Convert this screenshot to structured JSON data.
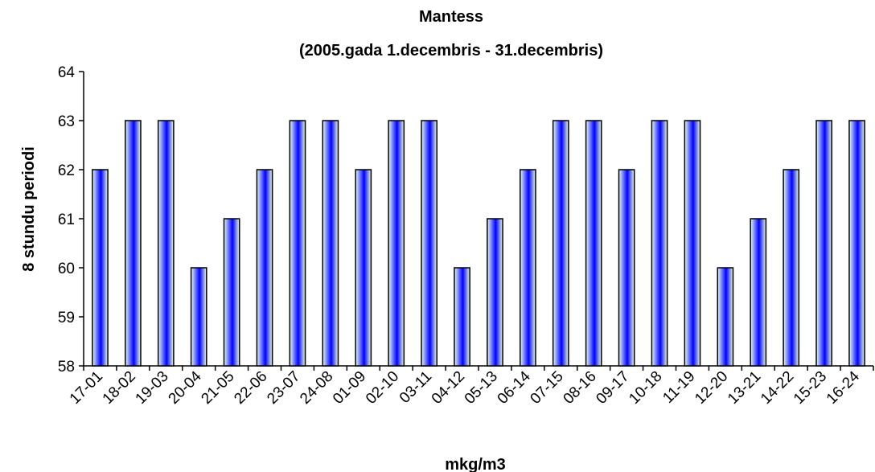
{
  "chart_data": {
    "type": "bar",
    "title": "Mantess",
    "subtitle": "(2005.gada 1.decembris - 31.decembris)",
    "xlabel": "mkg/m3",
    "ylabel": "8 stundu periodi",
    "ylim": [
      58,
      64
    ],
    "yticks": [
      58,
      59,
      60,
      61,
      62,
      63,
      64
    ],
    "grid": false,
    "legend": "none",
    "bar_gradient": [
      "#0000ff",
      "#e6ffe6"
    ],
    "categories": [
      "17-01",
      "18-02",
      "19-03",
      "20-04",
      "21-05",
      "22-06",
      "23-07",
      "24-08",
      "01-09",
      "02-10",
      "03-11",
      "04-12",
      "05-13",
      "06-14",
      "07-15",
      "08-16",
      "09-17",
      "10-18",
      "11-19",
      "12-20",
      "13-21",
      "14-22",
      "15-23",
      "16-24"
    ],
    "values": [
      62,
      63,
      63,
      60,
      61,
      62,
      63,
      63,
      62,
      63,
      63,
      60,
      61,
      62,
      63,
      63,
      62,
      63,
      63,
      60,
      61,
      62,
      63,
      63
    ]
  }
}
